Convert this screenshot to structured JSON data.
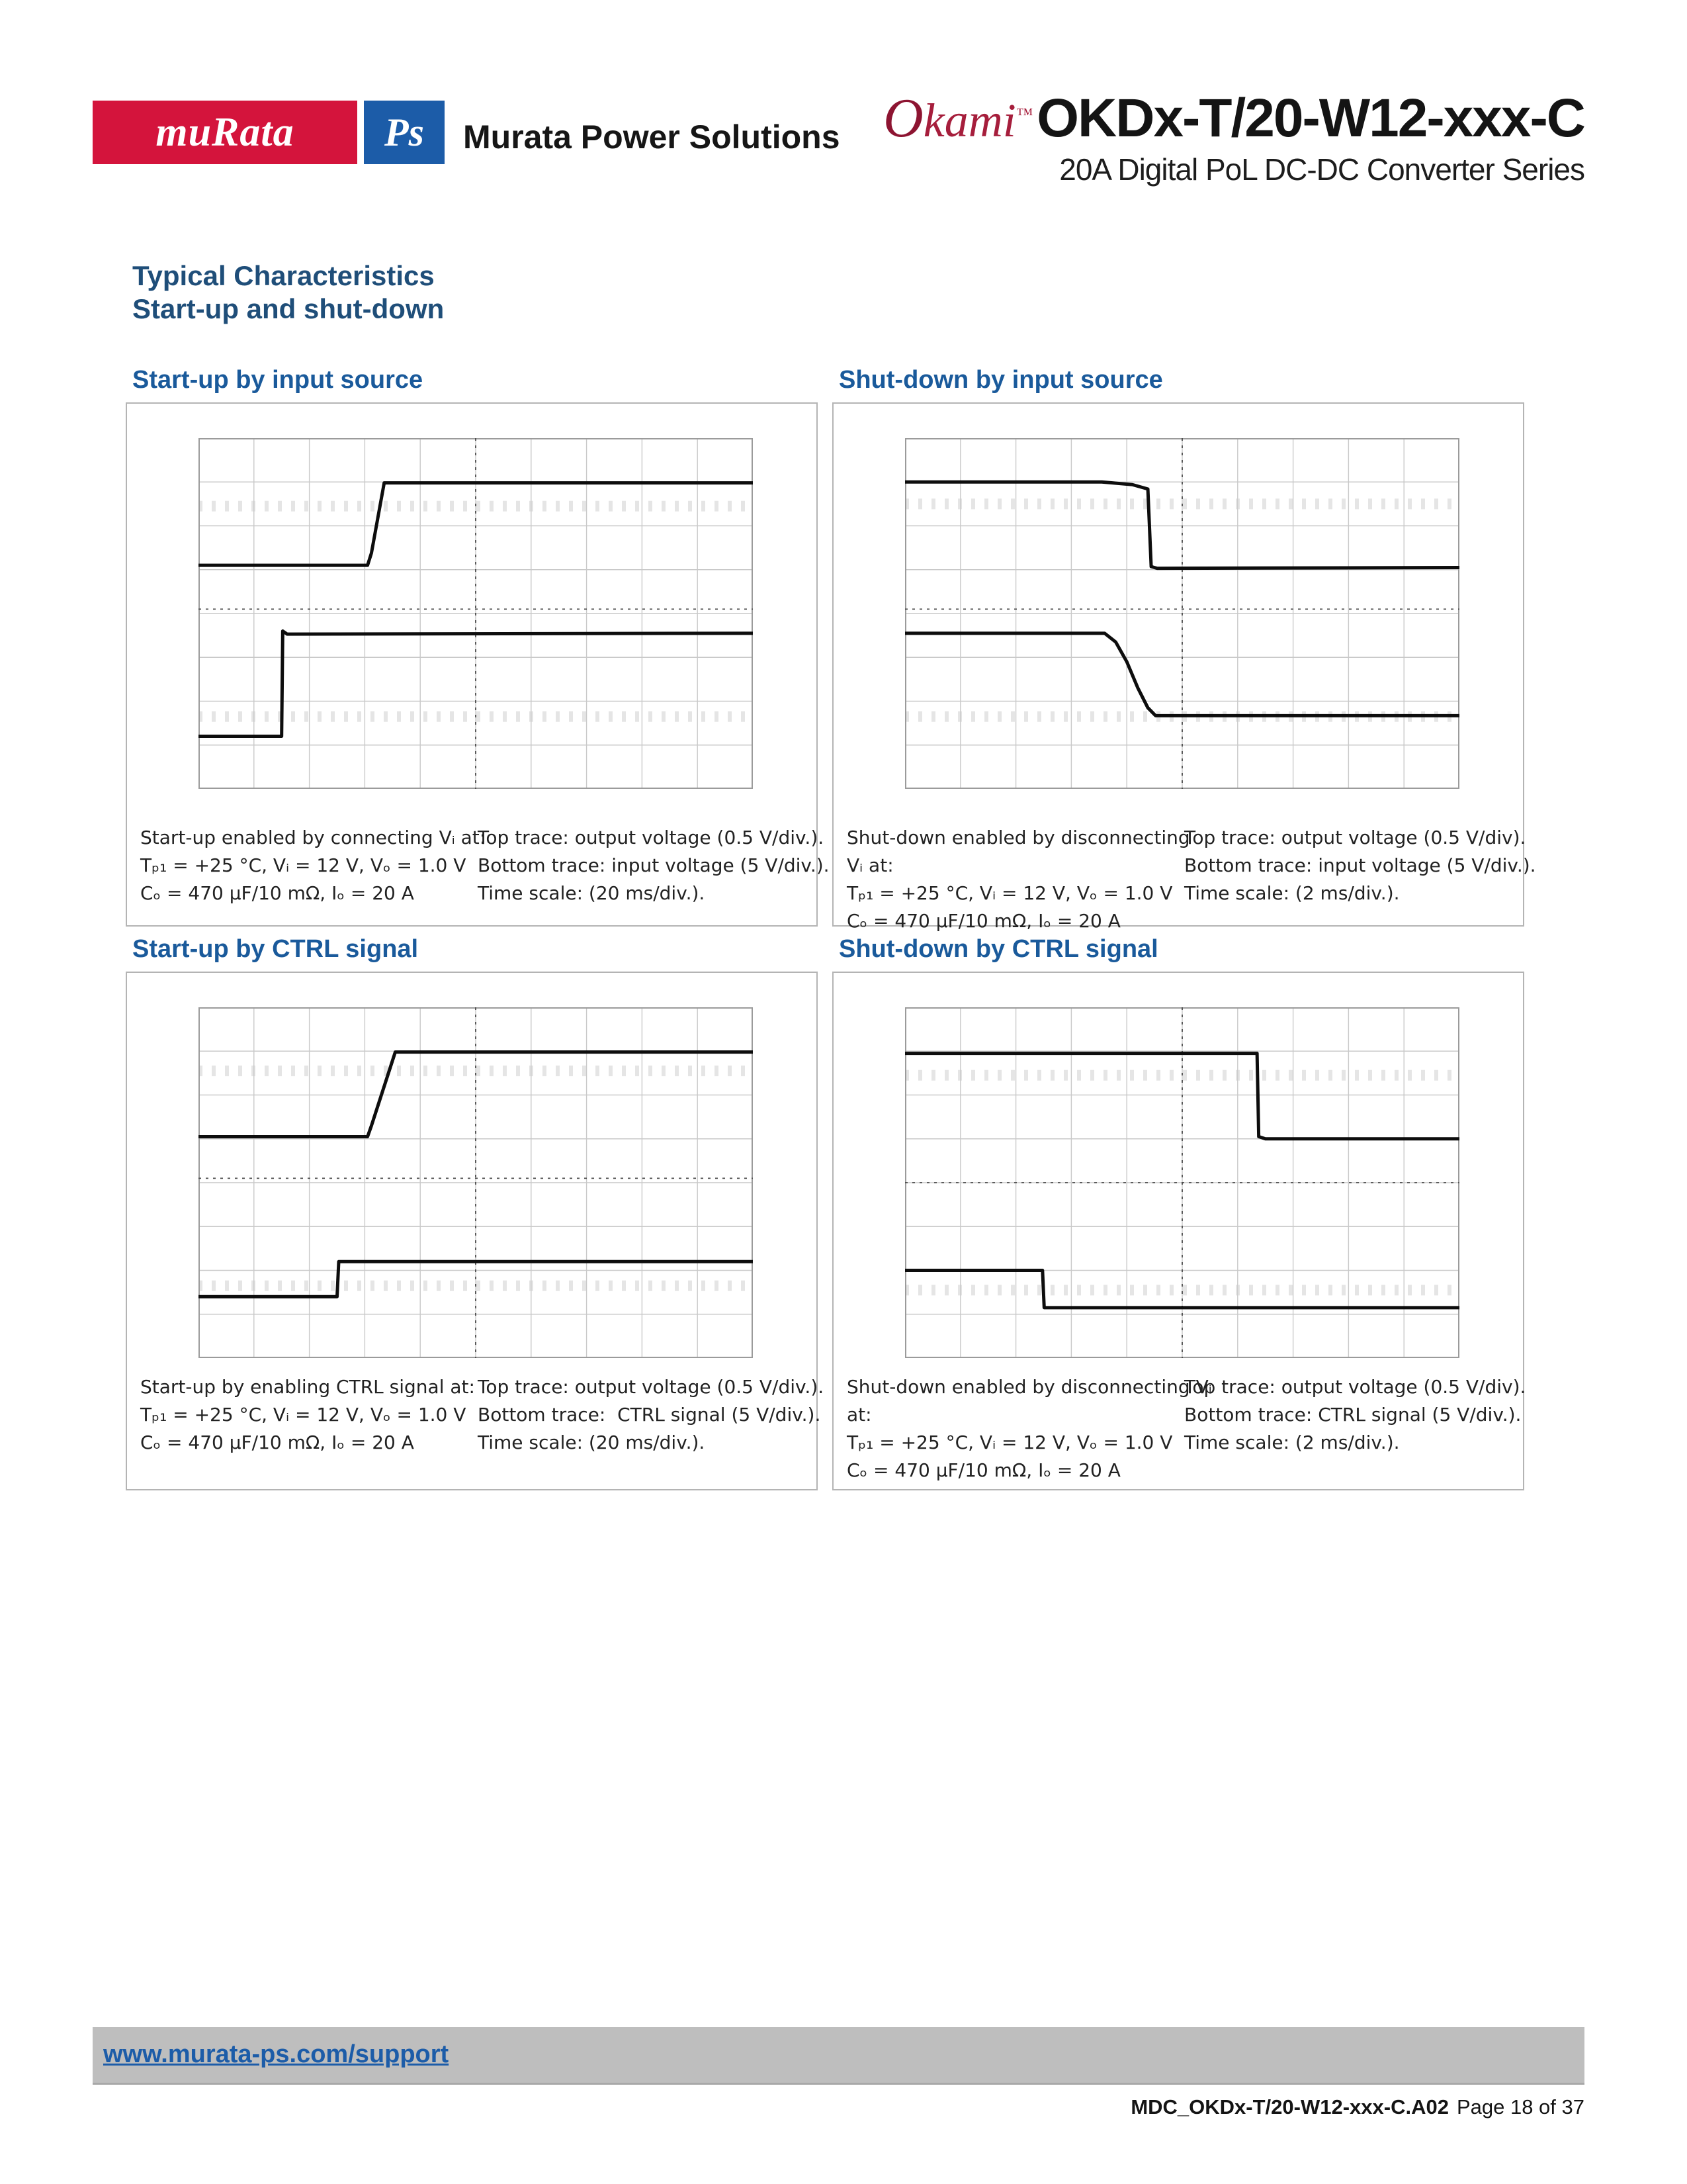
{
  "header": {
    "logo_murata": "muRata",
    "logo_ps": "Ps",
    "brand": "Murata Power Solutions",
    "okami_o": "O",
    "okami_rest": "kami",
    "okami_tm": "™",
    "model": "OKDx-T/20-W12-xxx-C",
    "series": "20A Digital PoL DC-DC Converter Series"
  },
  "section": {
    "title": "Typical Characteristics",
    "subtitle": "Start-up and shut-down"
  },
  "colors": {
    "section_heading_navy": "#1F4E79",
    "chart_title_blue": "#1A5A9B",
    "murata_red": "#D4143C",
    "ps_blue": "#1C5CA8",
    "okami_crimson": "#A61E3C",
    "footer_bar_gray": "#BEBEBE",
    "link_blue": "#1C5CA8",
    "grid_gray": "#C9C9C9",
    "faint_row_gray": "#E5E5E5",
    "center_dash_gray": "#4A4A4A",
    "trace_black": "#0D0D0D"
  },
  "chart_data": [
    {
      "type": "line",
      "title": "Start-up by input source",
      "grid": {
        "cols": 10,
        "rows": 8
      },
      "time_scale": "20 ms/div",
      "top_trace": "output voltage, 0.5 V/div",
      "bottom_trace": "input voltage, 5 V/div",
      "center_dashed": {
        "h_y": 3.9,
        "v_x": 5.0
      },
      "faint_rows": [
        1.55,
        6.35
      ],
      "series": [
        {
          "name": "output voltage (top trace)",
          "points_div": [
            [
              0,
              2.9
            ],
            [
              3.05,
              2.9
            ],
            [
              3.12,
              2.62
            ],
            [
              3.35,
              1.02
            ],
            [
              10,
              1.02
            ]
          ]
        },
        {
          "name": "input voltage (bottom trace)",
          "points_div": [
            [
              0,
              6.8
            ],
            [
              1.5,
              6.8
            ],
            [
              1.52,
              4.4
            ],
            [
              1.6,
              4.47
            ],
            [
              10,
              4.45
            ]
          ]
        }
      ],
      "captions": {
        "left": [
          "Start-up enabled by connecting Vᵢ at:",
          "Tₚ₁ = +25 °C, Vᵢ = 12 V, Vₒ = 1.0 V",
          "Cₒ = 470 µF/10 mΩ, Iₒ = 20 A"
        ],
        "right": [
          "Top trace: output voltage (0.5 V/div.).",
          "Bottom trace: input voltage (5 V/div.).",
          "Time scale: (20 ms/div.)."
        ]
      }
    },
    {
      "type": "line",
      "title": "Shut-down by input source",
      "grid": {
        "cols": 10,
        "rows": 8
      },
      "time_scale": "2 ms/div",
      "top_trace": "output voltage, 0.5 V/div",
      "bottom_trace": "input voltage, 5 V/div",
      "center_dashed": {
        "h_y": 3.9,
        "v_x": 5.0
      },
      "faint_rows": [
        1.5,
        6.35
      ],
      "series": [
        {
          "name": "output voltage (top trace)",
          "points_div": [
            [
              0,
              1.0
            ],
            [
              3.55,
              1.0
            ],
            [
              4.1,
              1.06
            ],
            [
              4.38,
              1.16
            ],
            [
              4.44,
              2.93
            ],
            [
              4.55,
              2.97
            ],
            [
              10,
              2.95
            ]
          ]
        },
        {
          "name": "input voltage (bottom trace)",
          "points_div": [
            [
              0,
              4.45
            ],
            [
              3.6,
              4.45
            ],
            [
              3.8,
              4.65
            ],
            [
              4.0,
              5.1
            ],
            [
              4.2,
              5.7
            ],
            [
              4.38,
              6.15
            ],
            [
              4.52,
              6.33
            ],
            [
              10,
              6.33
            ]
          ]
        }
      ],
      "captions": {
        "left": [
          "Shut-down enabled by disconnecting",
          "Vᵢ at:",
          "Tₚ₁ = +25 °C, Vᵢ = 12 V, Vₒ = 1.0 V",
          "Cₒ = 470 µF/10 mΩ, Iₒ = 20 A"
        ],
        "right": [
          "Top trace: output voltage (0.5 V/div).",
          "Bottom trace: input voltage (5 V/div.).",
          "Time scale: (2 ms/div.)."
        ]
      }
    },
    {
      "type": "line",
      "title": "Start-up by CTRL signal",
      "grid": {
        "cols": 10,
        "rows": 8
      },
      "time_scale": "20 ms/div",
      "top_trace": "output voltage, 0.5 V/div",
      "bottom_trace": "CTRL signal, 5 V/div",
      "center_dashed": {
        "h_y": 3.9,
        "v_x": 5.0
      },
      "faint_rows": [
        1.45,
        6.35
      ],
      "series": [
        {
          "name": "output voltage (top trace)",
          "points_div": [
            [
              0,
              2.95
            ],
            [
              3.05,
              2.95
            ],
            [
              3.12,
              2.7
            ],
            [
              3.55,
              1.02
            ],
            [
              10,
              1.02
            ]
          ]
        },
        {
          "name": "CTRL signal (bottom trace)",
          "points_div": [
            [
              0,
              6.6
            ],
            [
              2.5,
              6.6
            ],
            [
              2.53,
              5.8
            ],
            [
              10,
              5.8
            ]
          ]
        }
      ],
      "captions": {
        "left": [
          "Start-up by enabling CTRL signal at:",
          "Tₚ₁ = +25 °C, Vᵢ = 12 V, Vₒ = 1.0 V",
          "Cₒ = 470 µF/10 mΩ, Iₒ = 20 A"
        ],
        "right": [
          "Top trace: output voltage (0.5 V/div.).",
          "Bottom trace:  CTRL signal (5 V/div.).",
          "Time scale: (20 ms/div.)."
        ]
      }
    },
    {
      "type": "line",
      "title": "Shut-down by CTRL signal",
      "grid": {
        "cols": 10,
        "rows": 8
      },
      "time_scale": "2 ms/div",
      "top_trace": "output voltage, 0.5 V/div",
      "bottom_trace": "CTRL signal, 5 V/div",
      "center_dashed": {
        "h_y": 4.0,
        "v_x": 5.0
      },
      "faint_rows": [
        1.55,
        6.45
      ],
      "series": [
        {
          "name": "output voltage (top trace)",
          "points_div": [
            [
              0,
              1.05
            ],
            [
              6.35,
              1.05
            ],
            [
              6.38,
              2.95
            ],
            [
              6.5,
              3.0
            ],
            [
              10,
              3.0
            ]
          ]
        },
        {
          "name": "CTRL signal (bottom trace)",
          "points_div": [
            [
              0,
              6.0
            ],
            [
              2.48,
              6.0
            ],
            [
              2.51,
              6.85
            ],
            [
              10,
              6.85
            ]
          ]
        }
      ],
      "captions": {
        "left": [
          "Shut-down enabled by disconnecting Vᵢ",
          "at:",
          "Tₚ₁ = +25 °C, Vᵢ = 12 V, Vₒ = 1.0 V",
          "Cₒ = 470 µF/10 mΩ, Iₒ = 20 A"
        ],
        "right": [
          "Top trace: output voltage (0.5 V/div).",
          "Bottom trace: CTRL signal (5 V/div.).",
          "Time scale: (2 ms/div.)."
        ]
      }
    }
  ],
  "footer": {
    "url": "www.murata-ps.com/support",
    "doc": "MDC_OKDx-T/20-W12-xxx-C.A02",
    "page": "Page 18 of 37"
  }
}
